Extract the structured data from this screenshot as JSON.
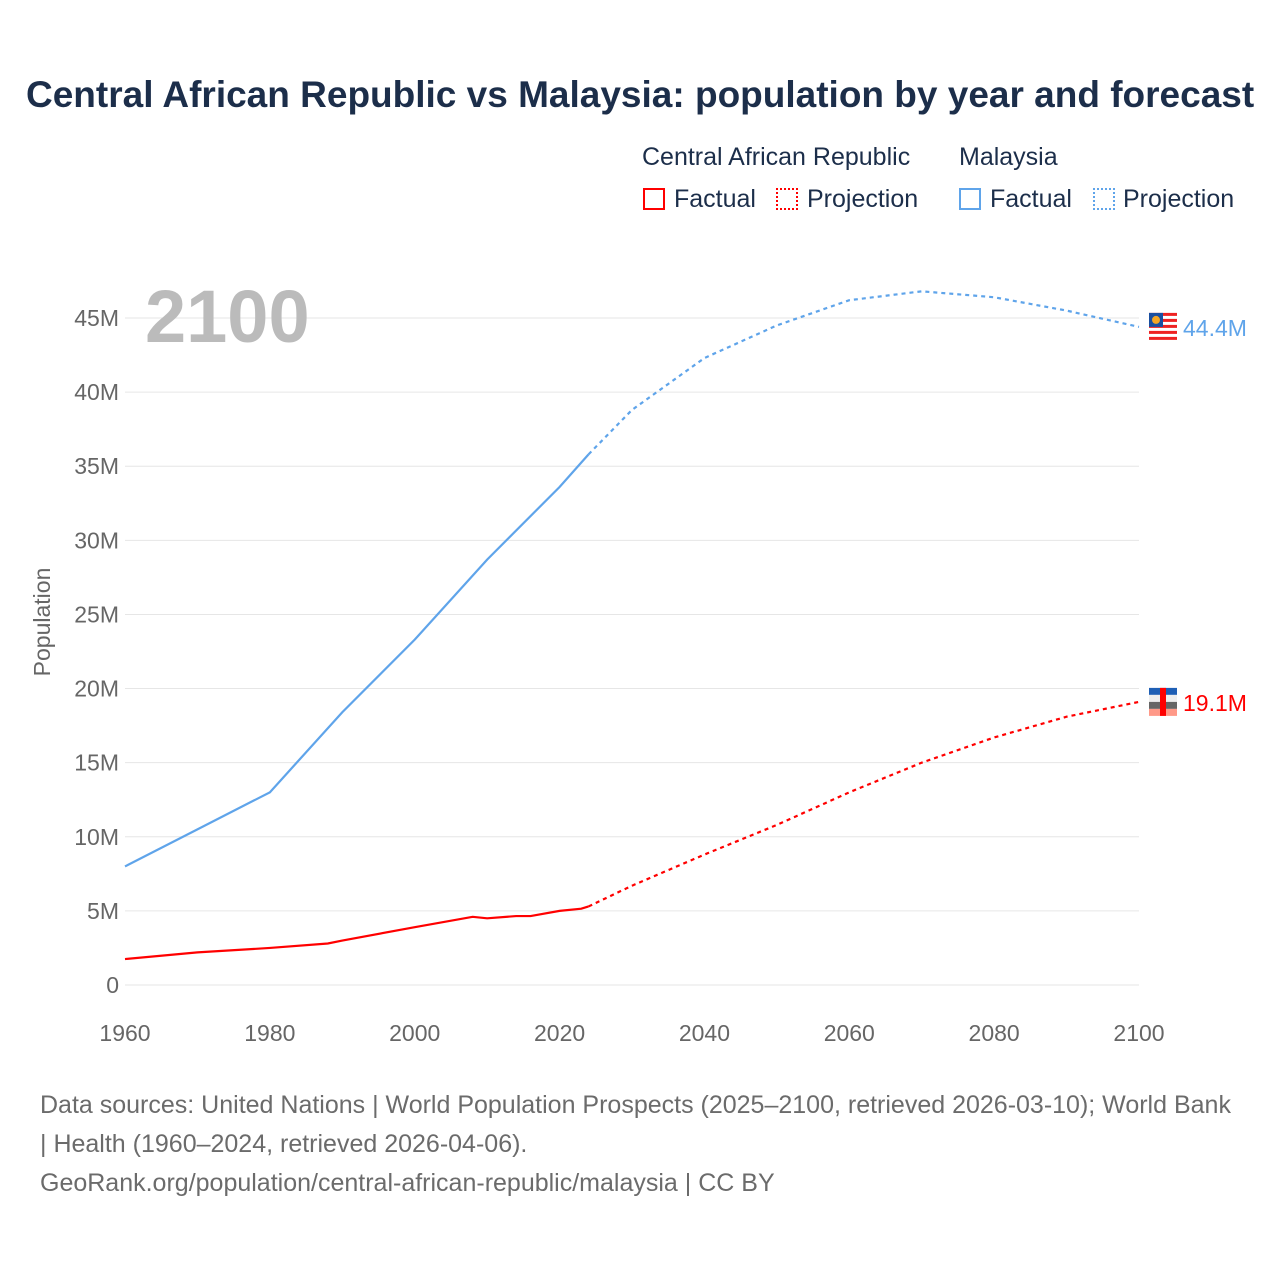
{
  "chart_data": {
    "type": "line",
    "title": "Central African Republic vs Malaysia: population by year and forecast",
    "xlabel": "",
    "ylabel": "Population",
    "xlim": [
      1960,
      2100
    ],
    "ylim": [
      0,
      45000000
    ],
    "x_ticks": [
      "1960",
      "1980",
      "2000",
      "2020",
      "2040",
      "2060",
      "2080",
      "2100"
    ],
    "y_ticks": [
      "0",
      "5M",
      "10M",
      "15M",
      "20M",
      "25M",
      "30M",
      "35M",
      "40M",
      "45M"
    ],
    "year_label": "2100",
    "grid": true,
    "legend": {
      "position": "top-right",
      "groups": [
        {
          "name": "Central African Republic",
          "items": [
            "Factual",
            "Projection"
          ]
        },
        {
          "name": "Malaysia",
          "items": [
            "Factual",
            "Projection"
          ]
        }
      ]
    },
    "series": [
      {
        "name": "Central African Republic",
        "color": "#ff0000",
        "end_label": "19.1M",
        "factual": {
          "x": [
            1960,
            1970,
            1980,
            1988,
            1990,
            2000,
            2008,
            2010,
            2014,
            2016,
            2020,
            2023,
            2024
          ],
          "y": [
            1.75,
            2.2,
            2.5,
            2.8,
            3.0,
            3.9,
            4.6,
            4.5,
            4.65,
            4.65,
            5.0,
            5.15,
            5.3
          ]
        },
        "projection": {
          "x": [
            2024,
            2030,
            2040,
            2050,
            2060,
            2070,
            2080,
            2090,
            2100
          ],
          "y": [
            5.3,
            6.7,
            8.8,
            10.8,
            13.0,
            15.0,
            16.7,
            18.1,
            19.1
          ]
        }
      },
      {
        "name": "Malaysia",
        "color": "#5fa4ea",
        "end_label": "44.4M",
        "factual": {
          "x": [
            1960,
            1970,
            1980,
            1990,
            2000,
            2010,
            2020,
            2024
          ],
          "y": [
            8.0,
            10.5,
            13.0,
            18.4,
            23.3,
            28.7,
            33.6,
            35.8
          ]
        },
        "projection": {
          "x": [
            2024,
            2030,
            2040,
            2050,
            2060,
            2070,
            2080,
            2090,
            2100
          ],
          "y": [
            35.8,
            38.8,
            42.3,
            44.5,
            46.2,
            46.8,
            46.4,
            45.5,
            44.4
          ]
        }
      }
    ],
    "y_unit": "millions"
  },
  "footer": {
    "line1": "Data sources: United Nations | World Population Prospects (2025–2100, retrieved 2026-03-10); World Bank | Health (1960–2024, retrieved 2026-04-06).",
    "line2": "GeoRank.org/population/central-african-republic/malaysia | CC BY"
  }
}
